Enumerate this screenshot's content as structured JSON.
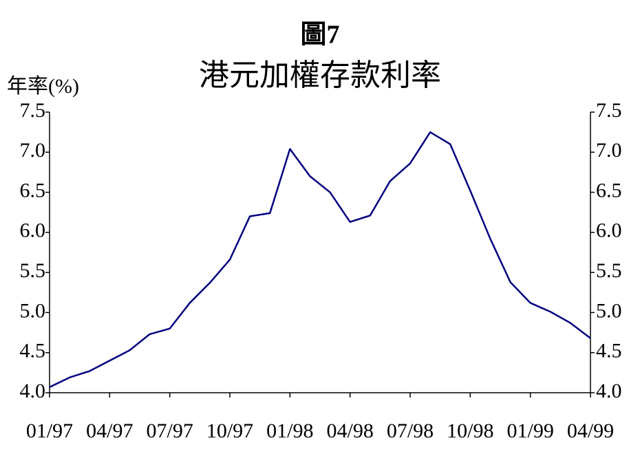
{
  "chart_data": {
    "type": "line",
    "title": "圖7",
    "subtitle": "港元加權存款利率",
    "y_label": "年率(%)",
    "categories": [
      "01/97",
      null,
      null,
      "04/97",
      null,
      null,
      "07/97",
      null,
      null,
      "10/97",
      null,
      null,
      "01/98",
      null,
      null,
      "04/98",
      null,
      null,
      "07/98",
      null,
      null,
      "10/98",
      null,
      null,
      "01/99",
      null,
      null,
      "04/99"
    ],
    "series": [
      {
        "color": "#000080",
        "values": [
          4.07,
          4.19,
          4.27,
          4.4,
          4.53,
          4.73,
          4.8,
          5.12,
          5.37,
          5.66,
          6.2,
          6.24,
          7.04,
          6.7,
          6.5,
          6.13,
          6.21,
          6.64,
          6.86,
          7.25,
          7.1,
          6.52,
          5.92,
          5.38,
          5.12,
          5.01,
          4.87,
          4.68
        ]
      }
    ],
    "ylim": [
      4,
      7.5
    ],
    "yticks": [
      {
        "value": 4,
        "label": "4.0"
      },
      {
        "value": 4.5,
        "label": "4.5"
      },
      {
        "value": 5,
        "label": "5.0"
      },
      {
        "value": 5.5,
        "label": "5.5"
      },
      {
        "value": 6,
        "label": "6.0"
      },
      {
        "value": 6.5,
        "label": "6.5"
      },
      {
        "value": 7,
        "label": "7.0"
      },
      {
        "value": 7.5,
        "label": "7.5"
      }
    ],
    "grid": false
  }
}
